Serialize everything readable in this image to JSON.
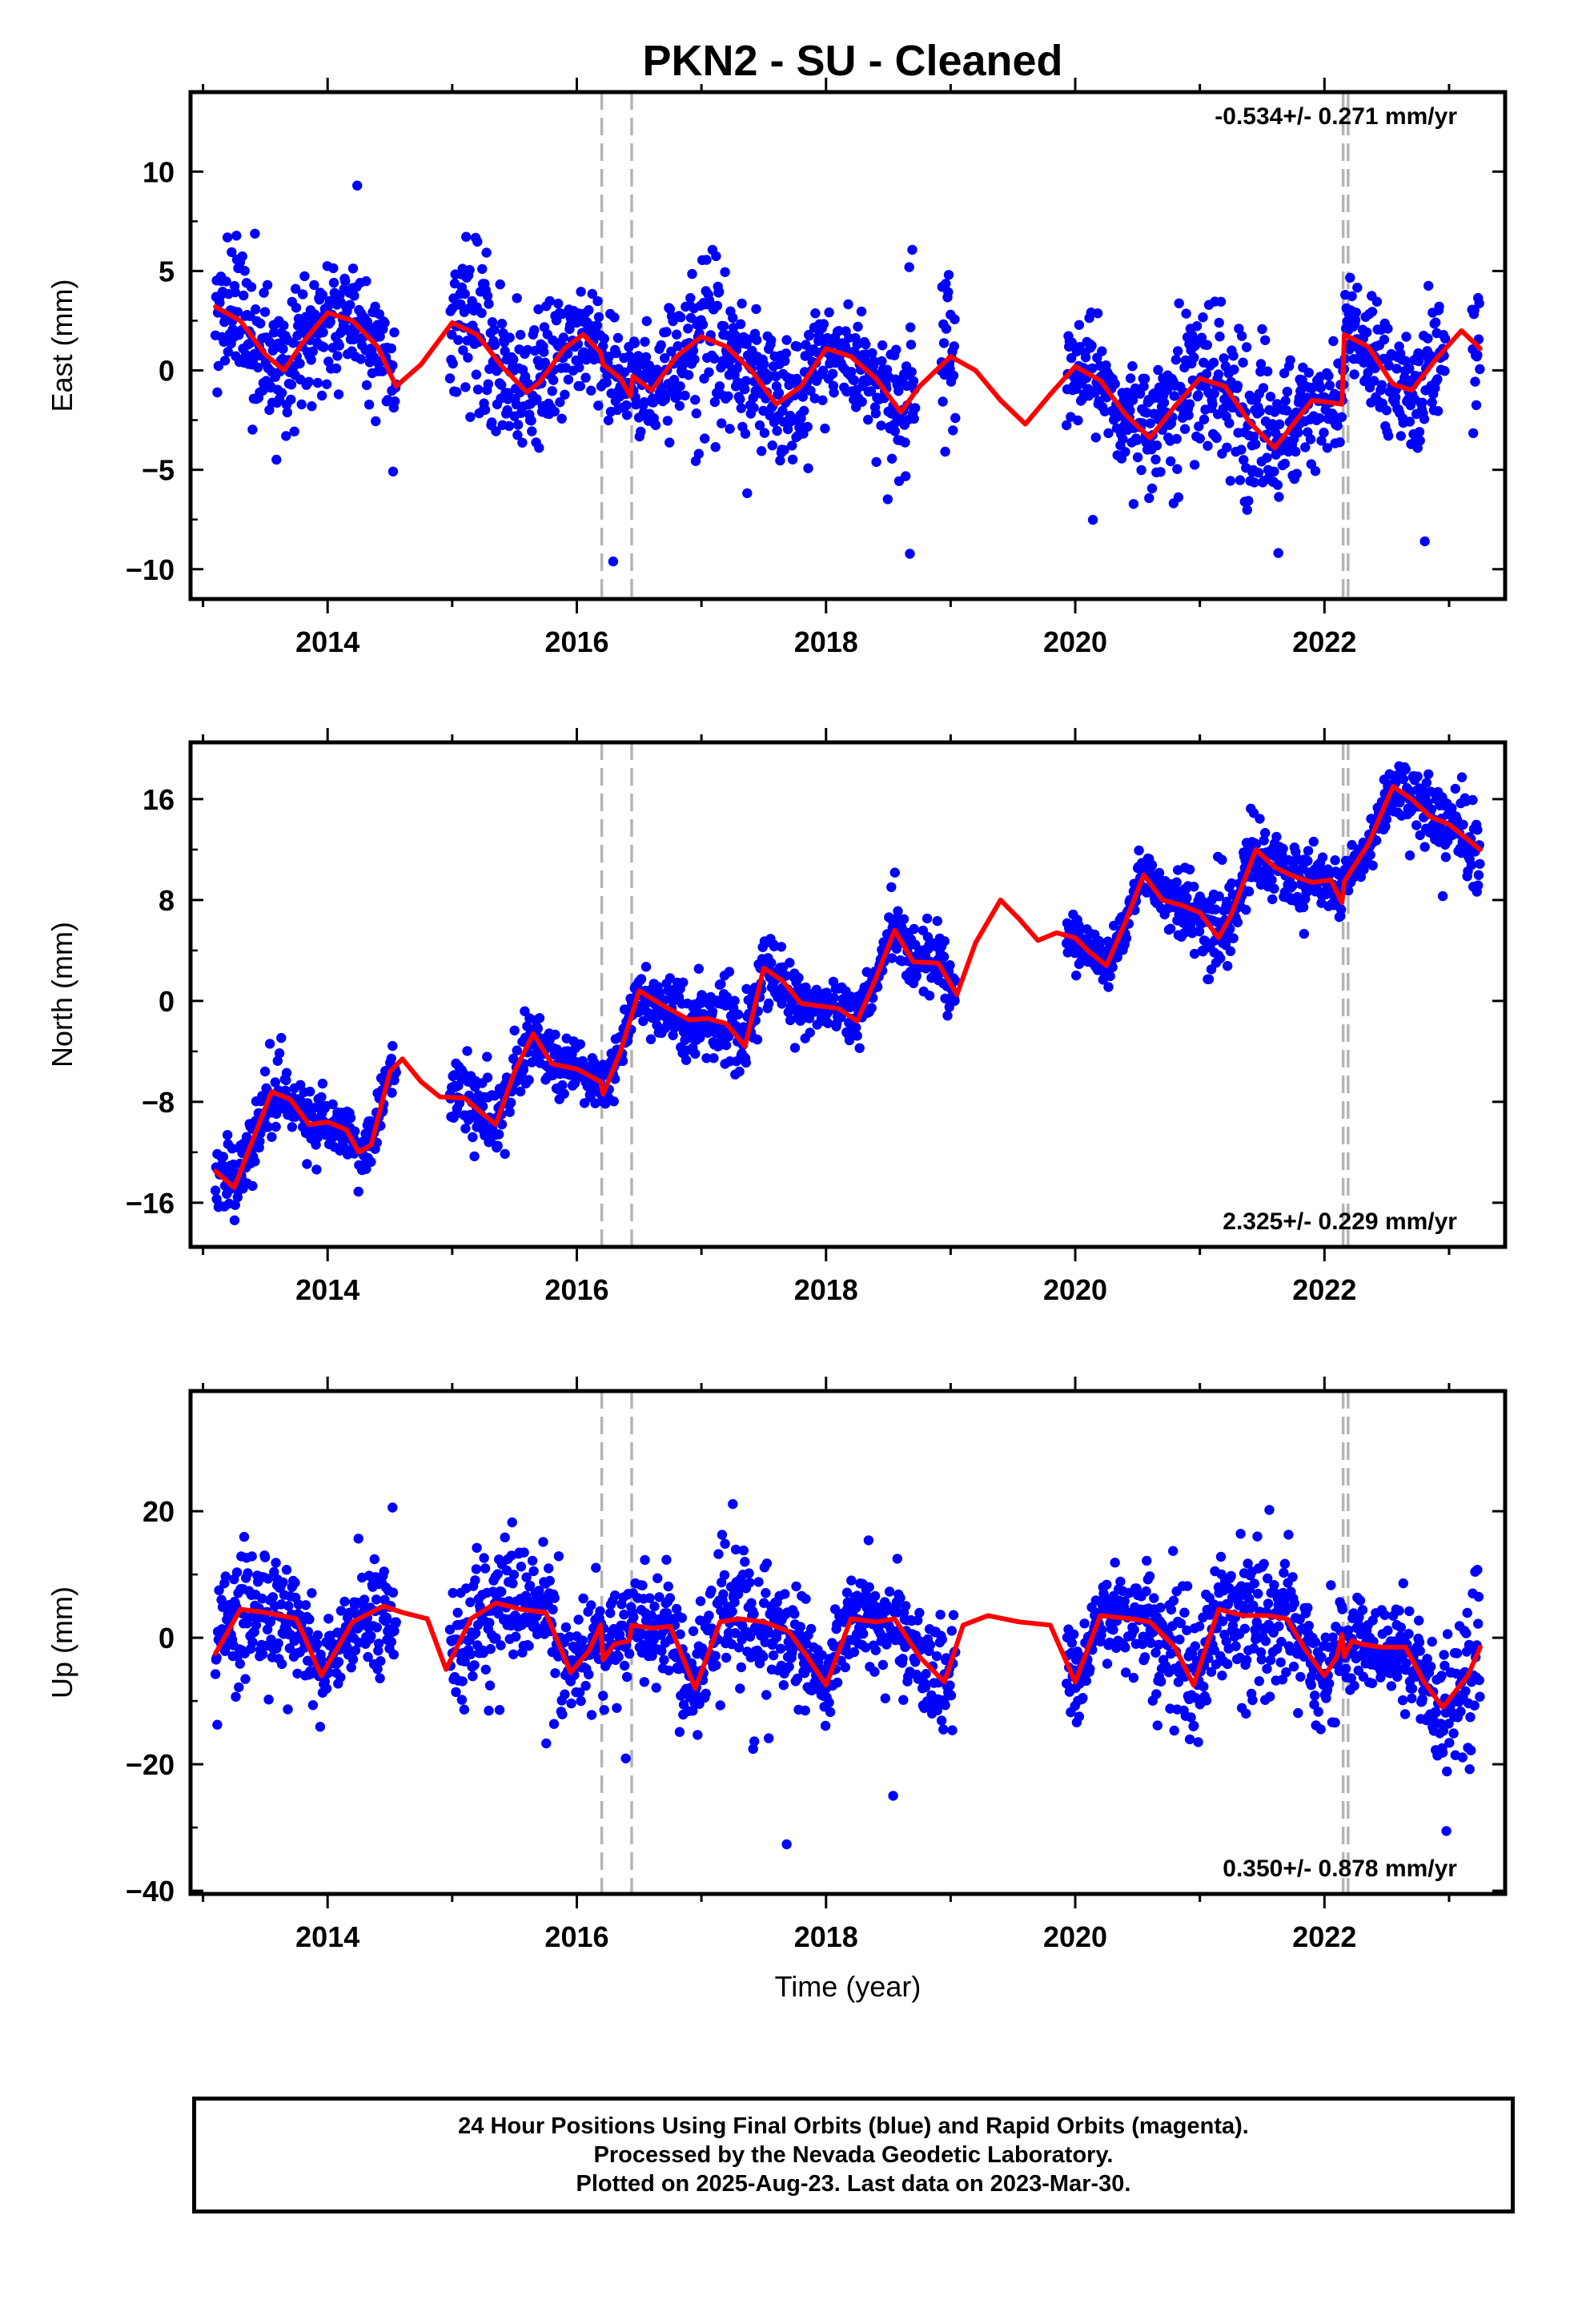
{
  "title": "PKN2  - SU - Cleaned",
  "colors": {
    "data": "#0000ff",
    "model": "#ff0000",
    "steps": "#b4b4b4",
    "axis": "#000000"
  },
  "chart_data": [
    {
      "type": "scatter",
      "component": "east",
      "ylabel": "East (mm)",
      "xlabel": "",
      "rate_text": "-0.534+/- 0.271 mm/yr",
      "rate_position": "top-right",
      "xlim": [
        2012.9,
        2023.45
      ],
      "ylim": [
        -11.5,
        14.0
      ],
      "yticks": [
        -10,
        -5,
        0,
        5,
        10
      ],
      "xticks": [
        2014,
        2016,
        2018,
        2020,
        2022
      ],
      "step_lines": [
        2016.2,
        2016.44,
        2022.15,
        2022.19
      ],
      "gaps": [
        [
          2014.55,
          2014.98
        ],
        [
          2018.72,
          2018.92
        ],
        [
          2019.04,
          2019.93
        ],
        [
          2022.97,
          2023.18
        ]
      ],
      "series": [
        {
          "x": [
            2013.1,
            2013.3,
            2013.5,
            2013.65,
            2013.8,
            2014.0,
            2014.2,
            2014.4,
            2014.55,
            2014.75,
            2015.0,
            2015.2,
            2015.4,
            2015.6,
            2015.7,
            2015.9,
            2016.05,
            2016.19,
            2016.21,
            2016.35,
            2016.43,
            2016.45,
            2016.6,
            2016.8,
            2017.0,
            2017.2,
            2017.4,
            2017.6,
            2017.8,
            2018.0,
            2018.2,
            2018.4,
            2018.6,
            2018.75,
            2019.0,
            2019.2,
            2019.4,
            2019.6,
            2019.8,
            2020.0,
            2020.2,
            2020.4,
            2020.6,
            2020.8,
            2021.0,
            2021.2,
            2021.4,
            2021.6,
            2021.75,
            2021.9,
            2022.14,
            2022.16,
            2022.35,
            2022.55,
            2022.7,
            2022.9,
            2023.1,
            2023.25
          ],
          "y": [
            3.2,
            2.5,
            0.8,
            0.0,
            1.4,
            2.9,
            2.5,
            1.2,
            -0.8,
            0.3,
            2.4,
            1.8,
            0.2,
            -1.1,
            -0.6,
            1.1,
            1.8,
            0.9,
            0.3,
            -0.4,
            -1.3,
            -0.3,
            -1.0,
            0.7,
            1.7,
            1.2,
            0.0,
            -1.7,
            -0.8,
            1.1,
            0.7,
            -0.4,
            -2.1,
            -0.8,
            0.7,
            0.0,
            -1.5,
            -2.7,
            -1.2,
            0.2,
            -0.5,
            -2.2,
            -3.4,
            -1.8,
            -0.4,
            -0.8,
            -2.6,
            -3.9,
            -2.7,
            -1.5,
            -1.7,
            1.8,
            1.2,
            -0.7,
            -1.0,
            0.6,
            2.0,
            1.1
          ]
        }
      ]
    },
    {
      "type": "scatter",
      "component": "north",
      "ylabel": "North (mm)",
      "xlabel": "",
      "rate_text": "2.325+/- 0.229 mm/yr",
      "rate_position": "bottom-right",
      "xlim": [
        2012.9,
        2023.45
      ],
      "ylim": [
        -19.5,
        20.5
      ],
      "yticks": [
        -16,
        -8,
        0,
        8,
        16
      ],
      "xticks": [
        2014,
        2016,
        2018,
        2020,
        2022
      ],
      "step_lines": [
        2016.2,
        2016.44,
        2022.15,
        2022.19
      ],
      "gaps": [
        [
          2014.55,
          2014.98
        ],
        [
          2019.04,
          2019.93
        ]
      ],
      "series": [
        {
          "x": [
            2013.1,
            2013.25,
            2013.4,
            2013.55,
            2013.7,
            2013.85,
            2014.0,
            2014.15,
            2014.25,
            2014.35,
            2014.5,
            2014.6,
            2014.75,
            2014.9,
            2015.1,
            2015.25,
            2015.35,
            2015.5,
            2015.65,
            2015.8,
            2016.0,
            2016.19,
            2016.21,
            2016.35,
            2016.5,
            2016.7,
            2016.9,
            2017.05,
            2017.2,
            2017.35,
            2017.5,
            2017.65,
            2017.8,
            2017.95,
            2018.1,
            2018.25,
            2018.4,
            2018.55,
            2018.7,
            2018.9,
            2019.05,
            2019.2,
            2019.4,
            2019.55,
            2019.7,
            2019.85,
            2020.0,
            2020.1,
            2020.25,
            2020.4,
            2020.55,
            2020.7,
            2020.85,
            2021.0,
            2021.15,
            2021.25,
            2021.45,
            2021.6,
            2021.75,
            2021.9,
            2022.05,
            2022.14,
            2022.16,
            2022.35,
            2022.55,
            2022.7,
            2022.85,
            2023.0,
            2023.25
          ],
          "y": [
            -13.5,
            -14.8,
            -11.0,
            -7.2,
            -7.8,
            -9.8,
            -9.6,
            -10.2,
            -12.0,
            -11.4,
            -5.6,
            -4.6,
            -6.4,
            -7.6,
            -7.7,
            -9.0,
            -9.8,
            -5.6,
            -2.6,
            -5.0,
            -5.4,
            -6.4,
            -7.4,
            -4.0,
            0.8,
            -0.4,
            -1.5,
            -1.4,
            -1.8,
            -3.6,
            2.6,
            1.6,
            -0.2,
            -0.4,
            -0.6,
            -1.6,
            1.8,
            5.6,
            3.1,
            3.0,
            0.5,
            4.6,
            8.0,
            6.5,
            4.8,
            5.4,
            5.0,
            4.0,
            2.8,
            6.2,
            10.0,
            8.0,
            7.6,
            7.0,
            5.0,
            6.8,
            12.0,
            10.6,
            9.9,
            9.4,
            9.6,
            7.8,
            9.5,
            12.4,
            17.0,
            16.0,
            14.6,
            14.0,
            12.0
          ]
        }
      ]
    },
    {
      "type": "scatter",
      "component": "up",
      "ylabel": "Up (mm)",
      "xlabel": "Time (year)",
      "rate_text": "0.350+/- 0.878 mm/yr",
      "rate_position": "bottom-right",
      "xlim": [
        2012.9,
        2023.45
      ],
      "ylim": [
        -40.5,
        39.0
      ],
      "yticks": [
        -40,
        -20,
        0,
        20
      ],
      "xticks": [
        2014,
        2016,
        2018,
        2020,
        2022
      ],
      "step_lines": [
        2016.2,
        2016.44,
        2022.15,
        2022.19
      ],
      "gaps": [
        [
          2014.55,
          2014.98
        ],
        [
          2019.04,
          2019.93
        ]
      ],
      "series": [
        {
          "x": [
            2013.1,
            2013.3,
            2013.5,
            2013.75,
            2013.95,
            2014.2,
            2014.45,
            2014.6,
            2014.8,
            2014.95,
            2015.15,
            2015.35,
            2015.55,
            2015.75,
            2015.95,
            2016.1,
            2016.19,
            2016.21,
            2016.3,
            2016.42,
            2016.44,
            2016.6,
            2016.75,
            2016.95,
            2017.15,
            2017.3,
            2017.5,
            2017.7,
            2017.85,
            2018.0,
            2018.2,
            2018.4,
            2018.55,
            2018.75,
            2018.95,
            2019.1,
            2019.3,
            2019.55,
            2019.8,
            2020.0,
            2020.2,
            2020.45,
            2020.6,
            2020.8,
            2020.95,
            2021.15,
            2021.35,
            2021.55,
            2021.7,
            2021.85,
            2022.0,
            2022.1,
            2022.14,
            2022.16,
            2022.22,
            2022.3,
            2022.45,
            2022.65,
            2022.8,
            2022.95,
            2023.15,
            2023.25
          ],
          "y": [
            -2.5,
            4.5,
            4.0,
            3.0,
            -6.0,
            2.5,
            5.0,
            4.0,
            3.0,
            -5.0,
            3.0,
            5.5,
            4.5,
            4.0,
            -5.5,
            -2.0,
            2.0,
            -3.5,
            -1.0,
            -0.5,
            2.0,
            1.5,
            1.8,
            -8.0,
            2.5,
            3.0,
            2.5,
            1.0,
            -3.0,
            -7.5,
            3.0,
            2.5,
            3.0,
            -3.0,
            -7.0,
            2.0,
            3.5,
            2.5,
            2.0,
            -7.0,
            3.5,
            3.0,
            2.5,
            -1.5,
            -7.5,
            4.5,
            3.5,
            3.5,
            3.0,
            -2.0,
            -6.0,
            -3.0,
            0.5,
            -3.0,
            -0.5,
            -1.0,
            -1.5,
            -1.5,
            -7.0,
            -11.0,
            -6.0,
            -1.5
          ]
        }
      ]
    }
  ],
  "footer": {
    "line1": "24 Hour Positions Using Final Orbits (blue) and Rapid Orbits (magenta).",
    "line2": "Processed by the Nevada Geodetic Laboratory.",
    "line3": "Plotted on 2025-Aug-23. Last data on 2023-Mar-30."
  }
}
